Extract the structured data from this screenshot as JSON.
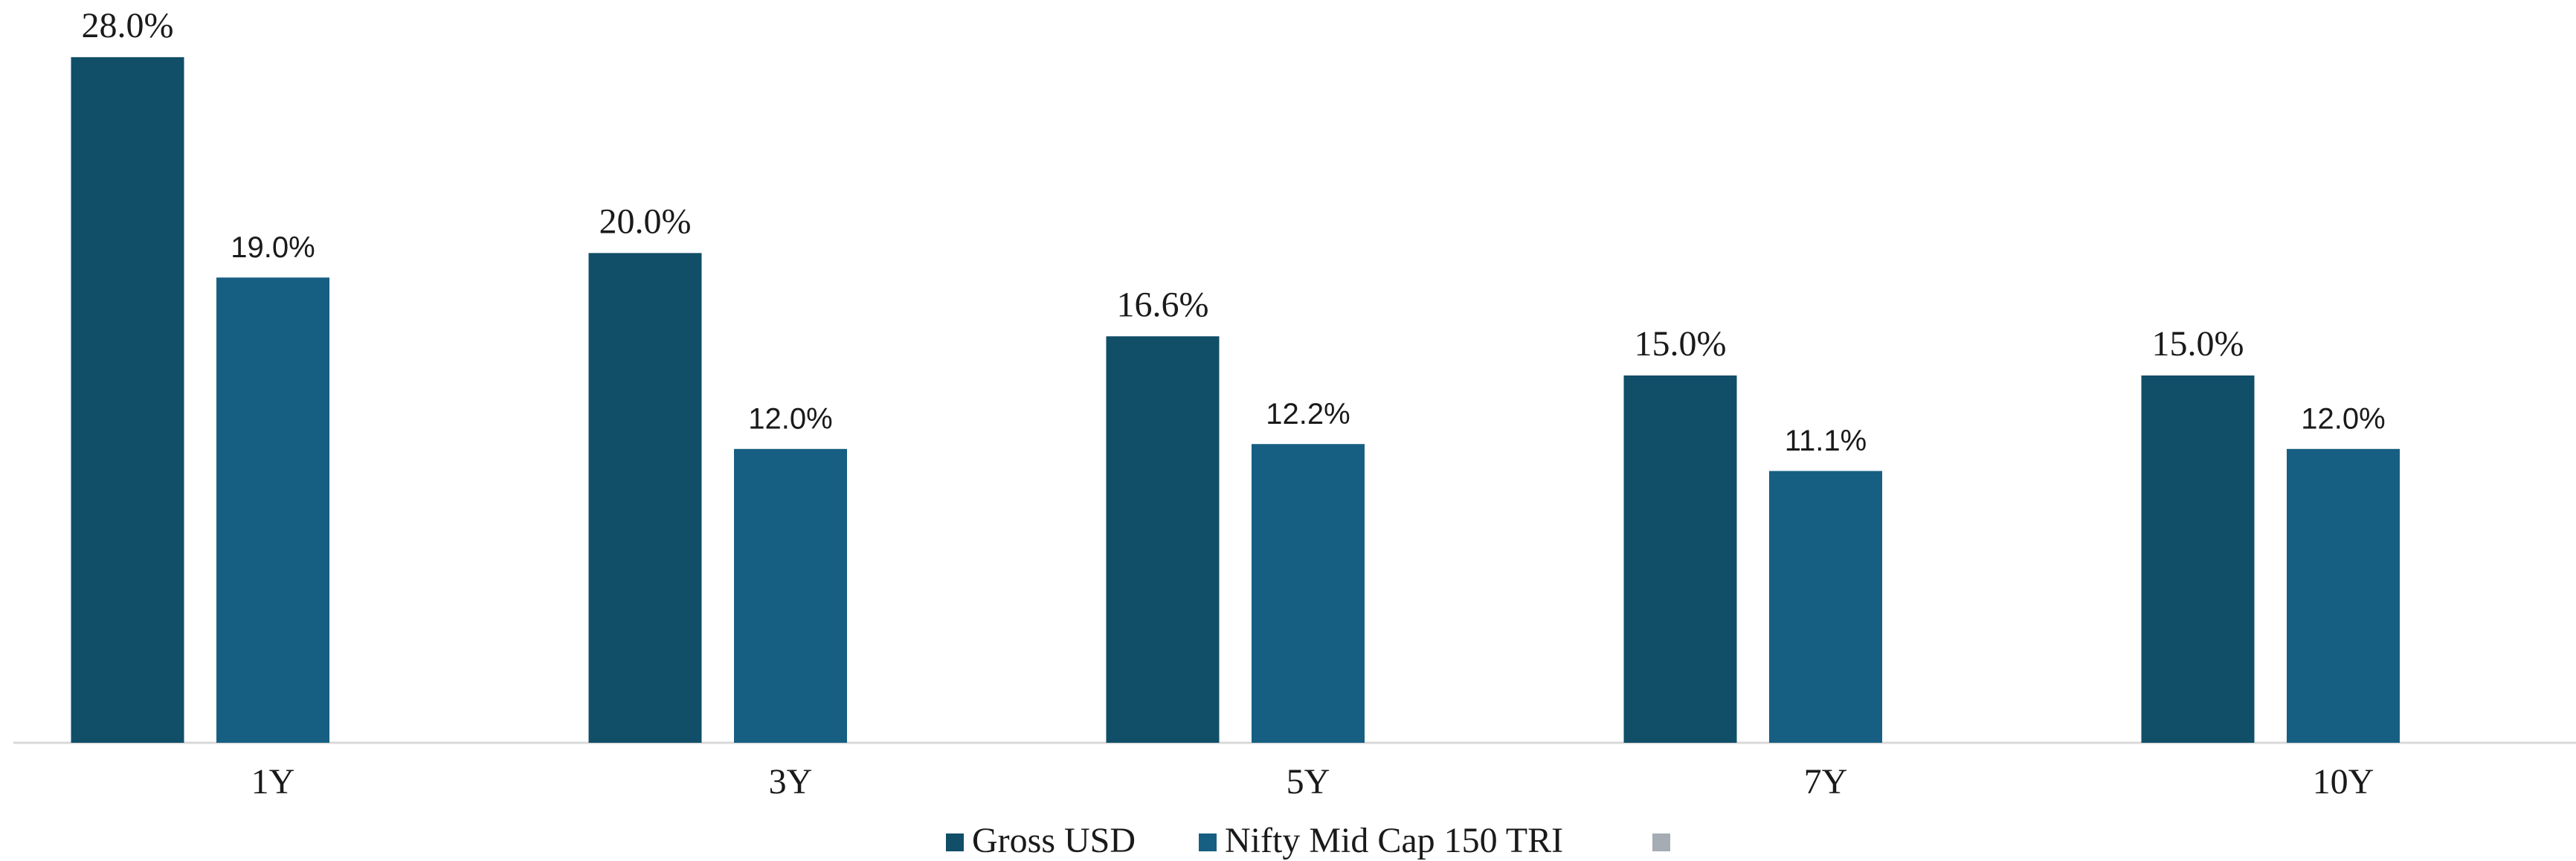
{
  "chart_data": {
    "type": "bar",
    "categories": [
      "1Y",
      "3Y",
      "5Y",
      "7Y",
      "10Y"
    ],
    "series": [
      {
        "name": "Gross USD",
        "color": "#114e68",
        "values": [
          28.0,
          20.0,
          16.6,
          15.0,
          15.0
        ],
        "value_labels": [
          "28.0%",
          "20.0%",
          "16.6%",
          "15.0%",
          "15.0%"
        ]
      },
      {
        "name": "Nifty Mid Cap 150 TRI",
        "color": "#175f82",
        "values": [
          19.0,
          12.0,
          12.2,
          11.1,
          12.0
        ],
        "value_labels": [
          "19.0%",
          "12.0%",
          "12.2%",
          "11.1%",
          "12.0%"
        ]
      }
    ],
    "ylim": [
      0,
      30
    ],
    "legend": "bottom"
  }
}
